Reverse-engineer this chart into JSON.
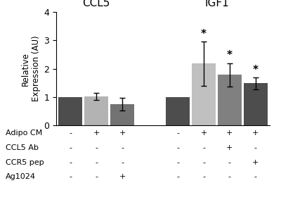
{
  "ccl5_values": [
    1.0,
    1.02,
    0.75
  ],
  "ccl5_errors": [
    0.0,
    0.13,
    0.22
  ],
  "igf1_values": [
    1.0,
    2.18,
    1.78,
    1.48
  ],
  "igf1_errors": [
    0.0,
    0.78,
    0.42,
    0.2
  ],
  "igf1_sig": [
    false,
    true,
    true,
    true
  ],
  "ccl5_colors": [
    "#4d4d4d",
    "#b3b3b3",
    "#737373"
  ],
  "igf1_colors": [
    "#4d4d4d",
    "#c0c0c0",
    "#808080",
    "#4d4d4d"
  ],
  "ccl5_group_label": "CCL5",
  "igf1_group_label": "IGF1",
  "ylabel_line1": "Relative",
  "ylabel_line2": "Expression (AU)",
  "ylim": [
    0,
    4
  ],
  "yticks": [
    0,
    1,
    2,
    3,
    4
  ],
  "table_rows": [
    "Adipo CM",
    "CCL5 Ab",
    "CCR5 pep",
    "Ag1024"
  ],
  "ccl5_table": [
    [
      "-",
      "+",
      "+"
    ],
    [
      "-",
      "-",
      "-"
    ],
    [
      "-",
      "-",
      "-"
    ],
    [
      "-",
      "-",
      "+"
    ]
  ],
  "igf1_table": [
    [
      "-",
      "+",
      "+",
      "+"
    ],
    [
      "-",
      "-",
      "+",
      "-"
    ],
    [
      "-",
      "-",
      "-",
      "+"
    ],
    [
      "-",
      "-",
      "-",
      "-"
    ]
  ]
}
